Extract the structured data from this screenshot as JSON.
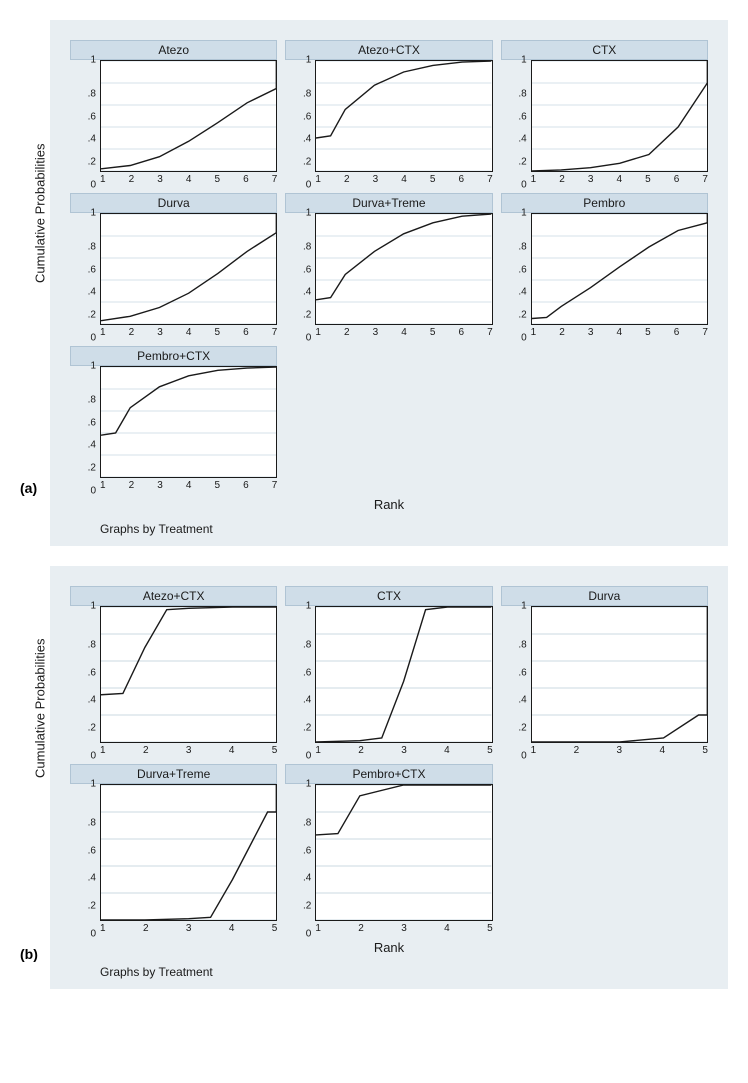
{
  "panel_a": {
    "label": "(a)",
    "background_color": "#e8eef2",
    "ylabel": "Cumulative Probabilities",
    "xlabel": "Rank",
    "footer": "Graphs by Treatment",
    "yticks": [
      "0",
      ".2",
      ".4",
      ".6",
      ".8",
      "1"
    ],
    "ylim": [
      0,
      1
    ],
    "xlim": [
      1,
      7
    ],
    "xticks": [
      1,
      2,
      3,
      4,
      5,
      6,
      7
    ],
    "title_bg": "#cfdde8",
    "grid_color": "#d5e0e8",
    "line_color": "#1a1a1a",
    "plot_bg": "#ffffff",
    "cols": 3,
    "rows": 3,
    "charts": [
      {
        "title": "Atezo",
        "x": [
          1,
          2,
          3,
          4,
          5,
          6,
          7,
          7
        ],
        "y": [
          0.02,
          0.05,
          0.13,
          0.27,
          0.44,
          0.62,
          0.75,
          1.0
        ]
      },
      {
        "title": "Atezo+CTX",
        "x": [
          1,
          1.5,
          2,
          3,
          4,
          5,
          6,
          7
        ],
        "y": [
          0.3,
          0.32,
          0.56,
          0.78,
          0.9,
          0.96,
          0.99,
          1.0
        ]
      },
      {
        "title": "CTX",
        "x": [
          1,
          2,
          3,
          4,
          5,
          6,
          7,
          7
        ],
        "y": [
          0.0,
          0.01,
          0.03,
          0.07,
          0.15,
          0.4,
          0.8,
          1.0
        ]
      },
      {
        "title": "Durva",
        "x": [
          1,
          2,
          3,
          4,
          5,
          6,
          7,
          7
        ],
        "y": [
          0.03,
          0.07,
          0.15,
          0.28,
          0.46,
          0.66,
          0.83,
          1.0
        ]
      },
      {
        "title": "Durva+Treme",
        "x": [
          1,
          1.5,
          2,
          3,
          4,
          5,
          6,
          7
        ],
        "y": [
          0.22,
          0.24,
          0.45,
          0.66,
          0.82,
          0.92,
          0.98,
          1.0
        ]
      },
      {
        "title": "Pembro",
        "x": [
          1,
          1.5,
          2,
          3,
          4,
          5,
          6,
          7,
          7
        ],
        "y": [
          0.05,
          0.06,
          0.16,
          0.33,
          0.52,
          0.7,
          0.85,
          0.92,
          1.0
        ]
      },
      {
        "title": "Pembro+CTX",
        "x": [
          1,
          1.5,
          2,
          3,
          4,
          5,
          6,
          7
        ],
        "y": [
          0.38,
          0.4,
          0.63,
          0.82,
          0.92,
          0.97,
          0.99,
          1.0
        ]
      }
    ]
  },
  "panel_b": {
    "label": "(b)",
    "background_color": "#e8eef2",
    "ylabel": "Cumulative Probabilities",
    "xlabel": "Rank",
    "footer": "Graphs by Treatment",
    "yticks": [
      "0",
      ".2",
      ".4",
      ".6",
      ".8",
      "1"
    ],
    "ylim": [
      0,
      1
    ],
    "xlim": [
      1,
      5
    ],
    "xticks": [
      1,
      2,
      3,
      4,
      5
    ],
    "title_bg": "#cfdde8",
    "grid_color": "#d5e0e8",
    "line_color": "#1a1a1a",
    "plot_bg": "#ffffff",
    "cols": 3,
    "rows": 2,
    "charts": [
      {
        "title": "Atezo+CTX",
        "x": [
          1,
          1.5,
          2,
          2.5,
          3,
          4,
          5
        ],
        "y": [
          0.35,
          0.36,
          0.7,
          0.98,
          0.99,
          1.0,
          1.0
        ]
      },
      {
        "title": "CTX",
        "x": [
          1,
          2,
          2.5,
          3,
          3.5,
          4,
          5
        ],
        "y": [
          0.0,
          0.01,
          0.03,
          0.45,
          0.98,
          1.0,
          1.0
        ]
      },
      {
        "title": "Durva",
        "x": [
          1,
          2,
          3,
          4,
          4.8,
          5,
          5
        ],
        "y": [
          0.0,
          0.0,
          0.0,
          0.03,
          0.2,
          0.2,
          1.0
        ]
      },
      {
        "title": "Durva+Treme",
        "x": [
          1,
          2,
          3,
          3.5,
          4,
          4.8,
          5,
          5
        ],
        "y": [
          0.0,
          0.0,
          0.01,
          0.02,
          0.3,
          0.8,
          0.8,
          1.0
        ]
      },
      {
        "title": "Pembro+CTX",
        "x": [
          1,
          1.5,
          2,
          3,
          4,
          5
        ],
        "y": [
          0.63,
          0.64,
          0.92,
          1.0,
          1.0,
          1.0
        ]
      }
    ]
  }
}
